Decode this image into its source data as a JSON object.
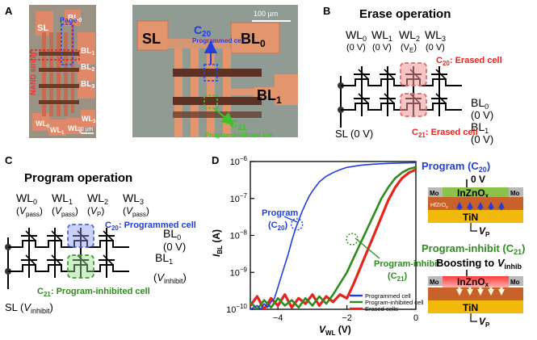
{
  "panels": {
    "A": {
      "letter": "A",
      "micro1": {
        "labels": {
          "sl": "SL",
          "bl0": "BL",
          "bl0_sub": "0",
          "bl1": "BL",
          "bl1_sub": "1",
          "bl2": "BL",
          "bl2_sub": "2",
          "bl3": "BL",
          "bl3_sub": "3",
          "wl0": "WL",
          "wl0_sub": "0",
          "wl1": "WL",
          "wl1_sub": "1",
          "wl2": "WL",
          "wl2_sub": "2",
          "wl3": "WL",
          "wl3_sub": "3",
          "page": "Page",
          "nand": "NAND string",
          "scale": "100 μm"
        }
      },
      "micro2": {
        "labels": {
          "sl": "SL",
          "bl0": "BL",
          "bl0_sub": "0",
          "bl1": "BL",
          "bl1_sub": "1",
          "scale": "100 μm",
          "c20": "C",
          "c20_sub": "20",
          "c20_desc": "Programmed cell",
          "c21": "C",
          "c21_sub": "21",
          "c21_desc": "Program-inhibited cell"
        }
      }
    },
    "B": {
      "letter": "B",
      "title": "Erase operation",
      "wls": [
        {
          "name": "WL",
          "sub": "0",
          "volt": "(0 V)"
        },
        {
          "name": "WL",
          "sub": "1",
          "volt": "(0 V)"
        },
        {
          "name": "WL",
          "sub": "2",
          "volt_pre": "(V",
          "volt_sub": "E",
          "volt_post": ")"
        },
        {
          "name": "WL",
          "sub": "3",
          "volt": "(0 V)"
        }
      ],
      "bl0": {
        "name": "BL",
        "sub": "0",
        "volt": "(0 V)"
      },
      "bl1": {
        "name": "BL",
        "sub": "1",
        "volt": "(0 V)"
      },
      "sl": "SL (0 V)",
      "c20": {
        "name": "C",
        "sub": "20",
        "desc": ": Erased cell"
      },
      "c21": {
        "name": "C",
        "sub": "21",
        "desc": ": Erased cell"
      }
    },
    "C": {
      "letter": "C",
      "title": "Program operation",
      "wls": [
        {
          "name": "WL",
          "sub": "0",
          "v": "V",
          "vsub": "pass"
        },
        {
          "name": "WL",
          "sub": "1",
          "v": "V",
          "vsub": "pass"
        },
        {
          "name": "WL",
          "sub": "2",
          "v": "V",
          "vsub": "P"
        },
        {
          "name": "WL",
          "sub": "3",
          "v": "V",
          "vsub": "pass"
        }
      ],
      "bl0": {
        "name": "BL",
        "sub": "0",
        "volt": "(0 V)"
      },
      "bl1": {
        "name": "BL",
        "sub": "1",
        "v": "V",
        "vsub": "inhibit"
      },
      "sl": {
        "pre": "SL (",
        "v": "V",
        "vsub": "inhibit",
        "post": ")"
      },
      "c20": {
        "name": "C",
        "sub": "20",
        "desc": ": Programmed cell"
      },
      "c21": {
        "name": "C",
        "sub": "21",
        "desc": ": Program-inhibited cell"
      }
    },
    "D": {
      "letter": "D",
      "program_label": {
        "line1": "Program",
        "name": "C",
        "sub": "20"
      },
      "inhibit_label": {
        "line1": "Program-inhibit",
        "name": "C",
        "sub": "21"
      },
      "side_program": {
        "title": "Program (",
        "name": "C",
        "sub": "20",
        "close": ")",
        "zero": "0 V",
        "mo": "Mo",
        "channel": "InZnO",
        "channel_sub": "x",
        "ferro": "HfZrO",
        "ferro_sub": "x",
        "tin": "TiN",
        "vp": "V",
        "vp_sub": "P"
      },
      "side_inhibit": {
        "title": "Program-inhibit (",
        "name": "C",
        "sub": "21",
        "close": ")",
        "boost": "Boosting to ",
        "v": "V",
        "vsub": "inhib",
        "mo": "Mo",
        "channel": "InZnO",
        "channel_sub": "x",
        "tin": "TiN",
        "vp": "V",
        "vp_sub": "P"
      }
    }
  },
  "chart_data": {
    "type": "line",
    "xlabel": {
      "main": "V",
      "sub": "WL",
      "unit": " (V)"
    },
    "ylabel": {
      "main": "I",
      "sub": "BL",
      "unit": " (A)"
    },
    "xlim": [
      -4.8,
      0
    ],
    "ylim_log10": [
      -10,
      -6
    ],
    "x_ticks": [
      -4,
      -2,
      0
    ],
    "x_tick_labels": [
      "−4",
      "−2",
      "0"
    ],
    "y_ticks": [
      -10,
      -9,
      -8,
      -7,
      -6
    ],
    "y_tick_labels": [
      {
        "base": "10",
        "exp": "−10"
      },
      {
        "base": "10",
        "exp": "−9"
      },
      {
        "base": "10",
        "exp": "−8"
      },
      {
        "base": "10",
        "exp": "−7"
      },
      {
        "base": "10",
        "exp": "−6"
      }
    ],
    "legend_placement": "bottom-right",
    "series": [
      {
        "name": "Programmed cell",
        "color": "#1f3de0",
        "x": [
          -4.8,
          -4.6,
          -4.5,
          -4.4,
          -4.3,
          -4.2,
          -4.1,
          -4.0,
          -3.9,
          -3.8,
          -3.7,
          -3.6,
          -3.5,
          -3.4,
          -3.3,
          -3.2,
          -3.1,
          -3.0,
          -2.8,
          -2.6,
          -2.4,
          -2.2,
          -2.0,
          -1.6,
          -1.2,
          -0.8,
          -0.4,
          0.0
        ],
        "y": [
          -10.0,
          -9.9,
          -10.0,
          -9.85,
          -9.95,
          -9.8,
          -9.7,
          -9.4,
          -9.1,
          -8.8,
          -8.5,
          -8.15,
          -7.85,
          -7.6,
          -7.35,
          -7.15,
          -6.95,
          -6.8,
          -6.55,
          -6.4,
          -6.3,
          -6.22,
          -6.16,
          -6.1,
          -6.07,
          -6.05,
          -6.04,
          -6.03
        ]
      },
      {
        "name": "Program-inhibited cell",
        "color": "#2e8b1e",
        "x": [
          -4.8,
          -4.6,
          -4.4,
          -4.2,
          -4.0,
          -3.8,
          -3.6,
          -3.4,
          -3.2,
          -3.0,
          -2.8,
          -2.6,
          -2.4,
          -2.2,
          -2.0,
          -1.8,
          -1.6,
          -1.4,
          -1.2,
          -1.0,
          -0.8,
          -0.6,
          -0.4,
          -0.2,
          0.0
        ],
        "y": [
          -9.8,
          -10.0,
          -9.75,
          -9.95,
          -9.7,
          -9.9,
          -9.75,
          -9.95,
          -9.7,
          -9.9,
          -9.65,
          -9.85,
          -9.6,
          -9.3,
          -9.0,
          -8.6,
          -8.2,
          -7.8,
          -7.4,
          -7.0,
          -6.7,
          -6.45,
          -6.3,
          -6.2,
          -6.15
        ]
      },
      {
        "name": "Erased cells",
        "color": "#e8231c",
        "x": [
          -4.8,
          -4.6,
          -4.4,
          -4.2,
          -4.0,
          -3.8,
          -3.6,
          -3.4,
          -3.2,
          -3.0,
          -2.8,
          -2.6,
          -2.4,
          -2.2,
          -2.0,
          -1.8,
          -1.6,
          -1.4,
          -1.2,
          -1.0,
          -0.8,
          -0.6,
          -0.4,
          -0.2,
          0.0
        ],
        "y": [
          -9.9,
          -9.65,
          -10.0,
          -9.7,
          -9.9,
          -9.6,
          -9.95,
          -9.7,
          -9.85,
          -9.6,
          -9.9,
          -9.65,
          -9.8,
          -9.6,
          -9.7,
          -9.3,
          -8.85,
          -8.4,
          -7.95,
          -7.5,
          -7.05,
          -6.7,
          -6.45,
          -6.3,
          -6.22
        ]
      }
    ],
    "markers": [
      {
        "series": 0,
        "x": -3.45,
        "y": -7.7
      },
      {
        "series": 1,
        "x": -1.85,
        "y": -8.1
      }
    ]
  }
}
